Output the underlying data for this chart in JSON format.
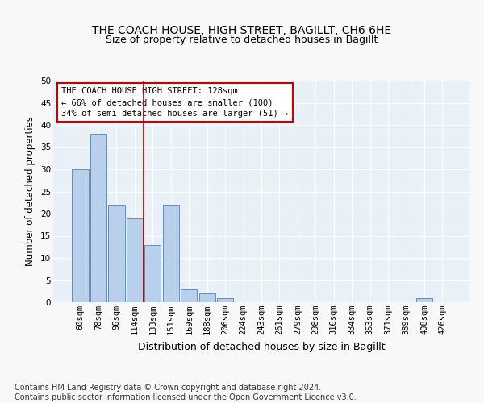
{
  "title1": "THE COACH HOUSE, HIGH STREET, BAGILLT, CH6 6HE",
  "title2": "Size of property relative to detached houses in Bagillt",
  "xlabel": "Distribution of detached houses by size in Bagillt",
  "ylabel": "Number of detached properties",
  "categories": [
    "60sqm",
    "78sqm",
    "96sqm",
    "114sqm",
    "133sqm",
    "151sqm",
    "169sqm",
    "188sqm",
    "206sqm",
    "224sqm",
    "243sqm",
    "261sqm",
    "279sqm",
    "298sqm",
    "316sqm",
    "334sqm",
    "353sqm",
    "371sqm",
    "389sqm",
    "408sqm",
    "426sqm"
  ],
  "values": [
    30,
    38,
    22,
    19,
    13,
    22,
    3,
    2,
    1,
    0,
    0,
    0,
    0,
    0,
    0,
    0,
    0,
    0,
    0,
    1,
    0
  ],
  "bar_color": "#b8d0eb",
  "bar_edge_color": "#5b8fc9",
  "vline_color": "#aa0000",
  "annotation_text": "THE COACH HOUSE HIGH STREET: 128sqm\n← 66% of detached houses are smaller (100)\n34% of semi-detached houses are larger (51) →",
  "annotation_box_color": "#ffffff",
  "annotation_box_edge": "#cc0000",
  "ylim": [
    0,
    50
  ],
  "yticks": [
    0,
    5,
    10,
    15,
    20,
    25,
    30,
    35,
    40,
    45,
    50
  ],
  "footer": "Contains HM Land Registry data © Crown copyright and database right 2024.\nContains public sector information licensed under the Open Government Licence v3.0.",
  "bg_color": "#e8f0f8",
  "grid_color": "#ffffff",
  "title_fontsize": 10,
  "subtitle_fontsize": 9,
  "xlabel_fontsize": 9,
  "ylabel_fontsize": 8.5,
  "tick_fontsize": 7.5,
  "footer_fontsize": 7,
  "annot_fontsize": 7.5
}
